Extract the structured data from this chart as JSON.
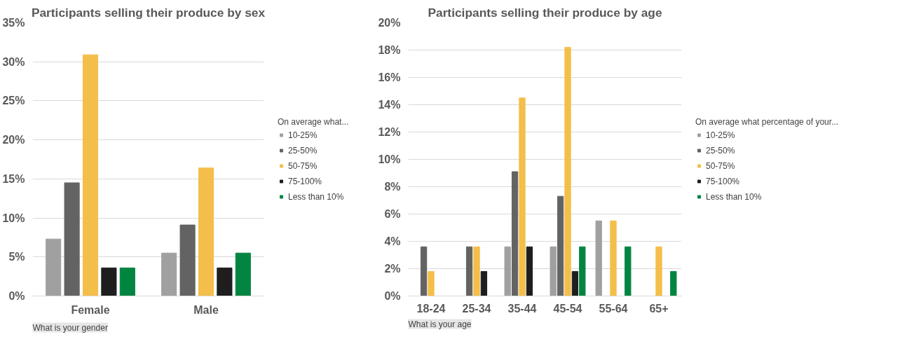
{
  "chart_data": [
    {
      "type": "bar",
      "title": "Participants selling their produce by sex",
      "categories": [
        "Female",
        "Male"
      ],
      "series": [
        {
          "name": "10-25%",
          "color": "#a0a0a0",
          "values": [
            7.3,
            5.5
          ]
        },
        {
          "name": "25-50%",
          "color": "#636363",
          "values": [
            14.5,
            9.1
          ]
        },
        {
          "name": "50-75%",
          "color": "#f4be4a",
          "values": [
            30.9,
            16.4
          ]
        },
        {
          "name": "75-100%",
          "color": "#1e1e1e",
          "values": [
            3.6,
            3.6
          ]
        },
        {
          "name": "Less than 10%",
          "color": "#038542",
          "values": [
            3.6,
            5.5
          ]
        }
      ],
      "ylim": [
        0,
        35
      ],
      "yticks": [
        {
          "value": 0,
          "label": "0%"
        },
        {
          "value": 5,
          "label": "5%"
        },
        {
          "value": 10,
          "label": "10%"
        },
        {
          "value": 15,
          "label": "15%"
        },
        {
          "value": 20,
          "label": "20%"
        },
        {
          "value": 25,
          "label": "25%"
        },
        {
          "value": 30,
          "label": "30%"
        },
        {
          "value": 35,
          "label": "35%"
        }
      ],
      "grid": "y",
      "legend": "right",
      "legend_title": "On average what...",
      "annotations": [
        "What is your gender"
      ]
    },
    {
      "type": "bar",
      "title": "Participants selling their produce by age",
      "categories": [
        "18-24",
        "25-34",
        "35-44",
        "45-54",
        "55-64",
        "65+"
      ],
      "series": [
        {
          "name": "10-25%",
          "color": "#a0a0a0",
          "values": [
            null,
            null,
            3.6,
            3.6,
            5.5,
            null
          ]
        },
        {
          "name": "25-50%",
          "color": "#636363",
          "values": [
            3.6,
            3.6,
            9.1,
            7.3,
            null,
            null
          ]
        },
        {
          "name": "50-75%",
          "color": "#f4be4a",
          "values": [
            1.8,
            3.6,
            14.5,
            18.2,
            5.5,
            3.6
          ]
        },
        {
          "name": "75-100%",
          "color": "#1e1e1e",
          "values": [
            null,
            1.8,
            3.6,
            1.8,
            null,
            null
          ]
        },
        {
          "name": "Less than 10%",
          "color": "#038542",
          "values": [
            null,
            null,
            null,
            3.6,
            3.6,
            1.8
          ]
        }
      ],
      "ylim": [
        0,
        20
      ],
      "yticks": [
        {
          "value": 0,
          "label": "0%"
        },
        {
          "value": 2,
          "label": "2%"
        },
        {
          "value": 4,
          "label": "4%"
        },
        {
          "value": 6,
          "label": "6%"
        },
        {
          "value": 8,
          "label": "8%"
        },
        {
          "value": 10,
          "label": "10%"
        },
        {
          "value": 12,
          "label": "12%"
        },
        {
          "value": 14,
          "label": "14%"
        },
        {
          "value": 16,
          "label": "16%"
        },
        {
          "value": 18,
          "label": "18%"
        },
        {
          "value": 20,
          "label": "20%"
        }
      ],
      "grid": "y",
      "legend": "right",
      "legend_title": "On average what percentage of your...",
      "annotations": [
        "What is your age"
      ]
    }
  ]
}
